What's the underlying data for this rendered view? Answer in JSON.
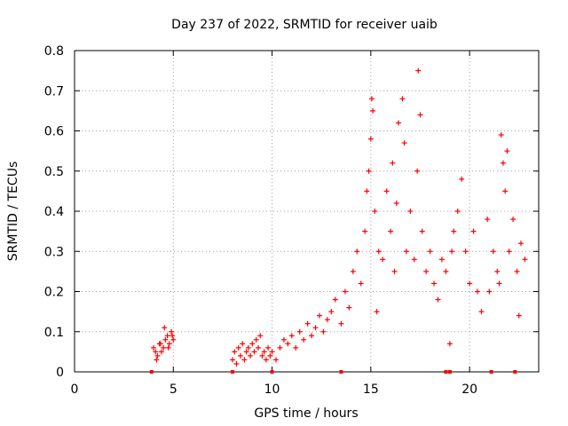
{
  "chart_data": {
    "type": "scatter",
    "title": "Day 237 of 2022, SRMTID for receiver uaib",
    "xlabel": "GPS time / hours",
    "ylabel": "SRMTID / TECUs",
    "xlim": [
      0,
      23.5
    ],
    "ylim": [
      0,
      0.8
    ],
    "x_ticks": [
      0,
      5,
      10,
      15,
      20
    ],
    "y_ticks": [
      0,
      0.1,
      0.2,
      0.3,
      0.4,
      0.5,
      0.6,
      0.7,
      0.8
    ],
    "y_tick_labels": [
      "0",
      "0.1",
      "0.2",
      "0.3",
      "0.4",
      "0.5",
      "0.6",
      "0.7",
      "0.8"
    ],
    "grid": true,
    "marker": "+",
    "series_color": "#ff0000",
    "series": [
      {
        "name": "SRMTID",
        "x": [
          4.0,
          4.1,
          4.2,
          4.3,
          4.4,
          4.5,
          4.6,
          4.7,
          4.8,
          4.9,
          5.0,
          4.15,
          4.35,
          4.55,
          4.75,
          4.95,
          8.0,
          8.1,
          8.2,
          8.3,
          8.4,
          8.5,
          8.6,
          8.7,
          8.8,
          8.9,
          9.0,
          9.1,
          9.2,
          9.3,
          9.4,
          9.5,
          9.6,
          9.7,
          9.8,
          9.9,
          10.0,
          10.2,
          10.4,
          10.6,
          10.8,
          11.0,
          11.2,
          11.4,
          11.6,
          11.8,
          12.0,
          12.2,
          12.4,
          12.6,
          12.8,
          13.0,
          13.2,
          13.5,
          13.7,
          13.9,
          14.1,
          14.3,
          14.5,
          14.7,
          14.8,
          14.9,
          15.0,
          15.05,
          15.1,
          15.2,
          15.4,
          15.6,
          15.8,
          16.0,
          16.1,
          16.2,
          16.4,
          16.6,
          16.7,
          16.8,
          17.0,
          17.2,
          17.35,
          17.4,
          17.5,
          17.6,
          17.8,
          18.0,
          18.2,
          18.4,
          18.6,
          18.8,
          19.0,
          19.1,
          19.2,
          19.4,
          19.6,
          19.8,
          20.0,
          20.2,
          20.4,
          20.6,
          21.0,
          21.2,
          21.4,
          21.6,
          21.7,
          21.8,
          22.0,
          22.2,
          22.4,
          22.5,
          22.6,
          22.8,
          21.5,
          21.9,
          20.9,
          16.3,
          15.3
        ],
        "y": [
          0.06,
          0.05,
          0.04,
          0.07,
          0.05,
          0.06,
          0.08,
          0.09,
          0.07,
          0.1,
          0.08,
          0.03,
          0.07,
          0.11,
          0.06,
          0.09,
          0.03,
          0.05,
          0.02,
          0.06,
          0.04,
          0.07,
          0.03,
          0.05,
          0.06,
          0.04,
          0.07,
          0.05,
          0.08,
          0.06,
          0.09,
          0.04,
          0.05,
          0.03,
          0.06,
          0.04,
          0.05,
          0.03,
          0.06,
          0.08,
          0.07,
          0.09,
          0.06,
          0.1,
          0.08,
          0.12,
          0.09,
          0.11,
          0.14,
          0.1,
          0.13,
          0.15,
          0.18,
          0.12,
          0.2,
          0.16,
          0.25,
          0.3,
          0.22,
          0.35,
          0.45,
          0.5,
          0.58,
          0.68,
          0.65,
          0.4,
          0.3,
          0.28,
          0.45,
          0.35,
          0.52,
          0.25,
          0.62,
          0.68,
          0.57,
          0.3,
          0.4,
          0.28,
          0.5,
          0.75,
          0.64,
          0.35,
          0.25,
          0.3,
          0.22,
          0.18,
          0.28,
          0.25,
          0.07,
          0.3,
          0.35,
          0.4,
          0.48,
          0.3,
          0.22,
          0.35,
          0.2,
          0.15,
          0.2,
          0.3,
          0.25,
          0.59,
          0.52,
          0.45,
          0.3,
          0.38,
          0.25,
          0.14,
          0.32,
          0.28,
          0.22,
          0.55,
          0.38,
          0.42,
          0.15
        ]
      }
    ],
    "markers_on_axis": {
      "x": [
        3.9,
        8.0,
        10.0,
        13.5,
        18.8,
        19.0,
        21.1,
        22.3
      ],
      "y": 0
    }
  }
}
